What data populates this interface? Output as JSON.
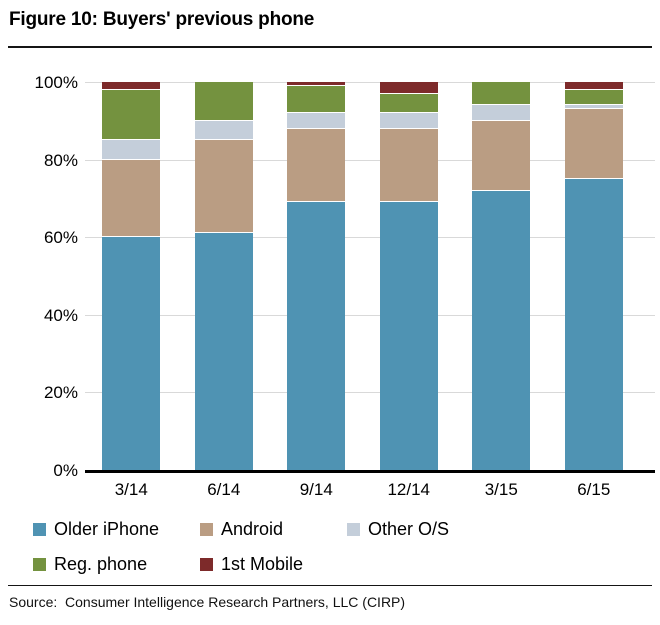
{
  "header": {
    "title": "Figure 10: Buyers' previous phone"
  },
  "chart_data": {
    "type": "bar",
    "subtype": "stacked-percent",
    "title": "Figure 10: Buyers' previous phone",
    "categories": [
      "3/14",
      "6/14",
      "9/14",
      "12/14",
      "3/15",
      "6/15"
    ],
    "series": [
      {
        "name": "Older iPhone",
        "color": "#4F93B3",
        "values": [
          60,
          61,
          69,
          69,
          72,
          75
        ]
      },
      {
        "name": "Android",
        "color": "#BA9D83",
        "values": [
          20,
          24,
          19,
          19,
          18,
          18
        ]
      },
      {
        "name": "Other O/S",
        "color": "#C4CEDA",
        "values": [
          5,
          5,
          4,
          4,
          4,
          1
        ]
      },
      {
        "name": "Reg. phone",
        "color": "#74923F",
        "values": [
          13,
          10,
          7,
          5,
          6,
          4
        ]
      },
      {
        "name": "1st Mobile",
        "color": "#7D2A2A",
        "values": [
          2,
          0,
          1,
          3,
          0,
          2
        ]
      }
    ],
    "xlabel": "",
    "ylabel": "",
    "y_axis": {
      "min": 0,
      "max": 100,
      "ticks": [
        {
          "label": "0%",
          "value": 0
        },
        {
          "label": "20%",
          "value": 20
        },
        {
          "label": "40%",
          "value": 40
        },
        {
          "label": "60%",
          "value": 60
        },
        {
          "label": "80%",
          "value": 80
        },
        {
          "label": "100%",
          "value": 100
        }
      ]
    },
    "grid": true,
    "legend_position": "bottom",
    "legend_entries": [
      "Older iPhone",
      "Android",
      "Other O/S",
      "Reg. phone",
      "1st Mobile"
    ]
  },
  "footer": {
    "source": "Source:  Consumer Intelligence Research Partners, LLC (CIRP)"
  }
}
